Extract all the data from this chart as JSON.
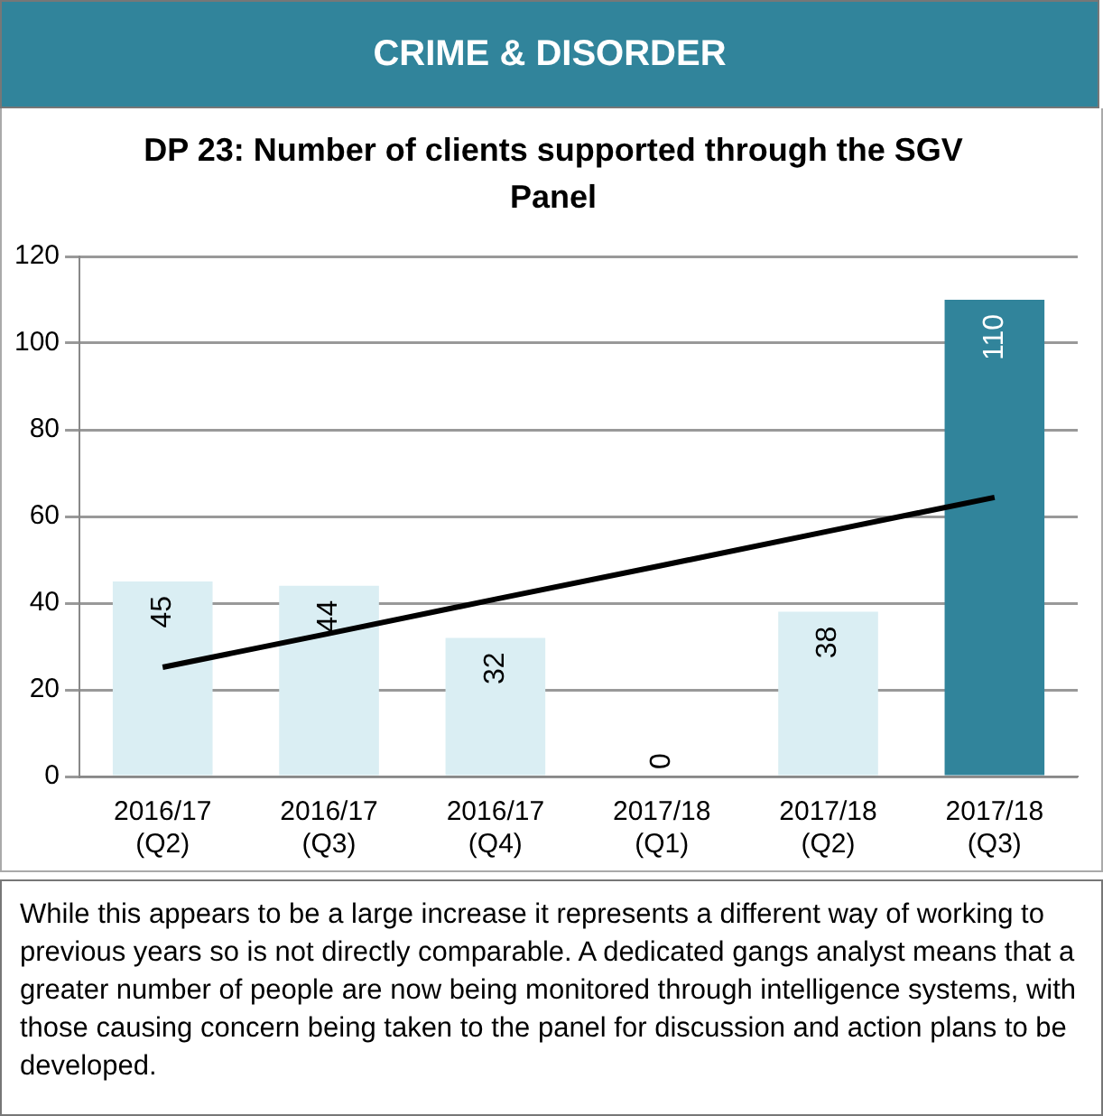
{
  "chart_data": {
    "type": "bar",
    "title": "DP 23: Number of clients supported through the SGV Panel",
    "categories": [
      "2016/17 (Q2)",
      "2016/17 (Q3)",
      "2016/17 (Q4)",
      "2017/18 (Q1)",
      "2017/18 (Q2)",
      "2017/18 (Q3)"
    ],
    "series": [
      {
        "color": "#31849b",
        "colors": [
          "#daeef3",
          "#daeef3",
          "#daeef3",
          "#daeef3",
          "#daeef3",
          "#31849b"
        ],
        "values": [
          45,
          44,
          32,
          0,
          38,
          110
        ],
        "value_labels": [
          "45",
          "44",
          "32",
          "0",
          "38",
          "110"
        ]
      },
      {
        "type": "line",
        "color": "#000000",
        "values": [
          25.2,
          33,
          40.9,
          48.7,
          56.6,
          64.4
        ]
      }
    ],
    "ylim": [
      0,
      120
    ],
    "yticks": [
      0,
      20,
      40,
      60,
      80,
      100,
      120
    ],
    "grid": "y",
    "legend": false,
    "marker": "none",
    "annotations": [
      "CRIME & DISORDER",
      "While this appears to be a large increase it represents a different way of working to previous years so is not directly comparable. A dedicated gangs analyst means that a greater number of people are now being monitored through intelligence systems, with those causing concern being taken to the panel for discussion and action plans to be developed."
    ]
  }
}
